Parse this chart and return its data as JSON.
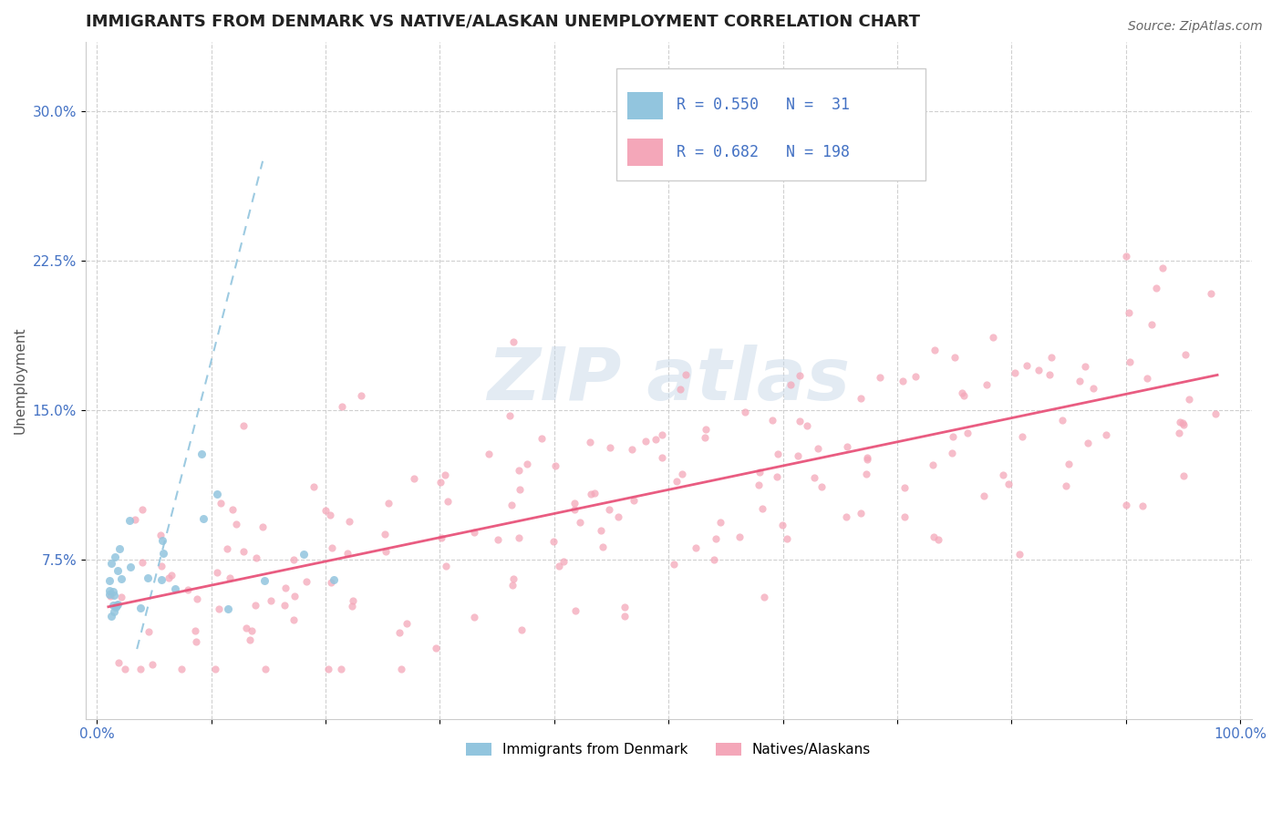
{
  "title": "IMMIGRANTS FROM DENMARK VS NATIVE/ALASKAN UNEMPLOYMENT CORRELATION CHART",
  "source": "Source: ZipAtlas.com",
  "ylabel": "Unemployment",
  "xlim": [
    -0.01,
    1.01
  ],
  "ylim": [
    -0.005,
    0.335
  ],
  "xticks": [
    0.0,
    0.1,
    0.2,
    0.3,
    0.4,
    0.5,
    0.6,
    0.7,
    0.8,
    0.9,
    1.0
  ],
  "xticklabels": [
    "0.0%",
    "",
    "",
    "",
    "",
    "",
    "",
    "",
    "",
    "",
    "100.0%"
  ],
  "yticks": [
    0.075,
    0.15,
    0.225,
    0.3
  ],
  "yticklabels": [
    "7.5%",
    "15.0%",
    "22.5%",
    "30.0%"
  ],
  "blue_color": "#92c5de",
  "pink_color": "#f4a7b9",
  "blue_line_color": "#92c5de",
  "pink_line_color": "#e8537a",
  "tick_color": "#4472c4",
  "title_fontsize": 13,
  "axis_label_fontsize": 11,
  "tick_fontsize": 11,
  "legend_fontsize": 12,
  "legend_text_color": "#4472c4",
  "watermark_color": "#c8d8e8"
}
